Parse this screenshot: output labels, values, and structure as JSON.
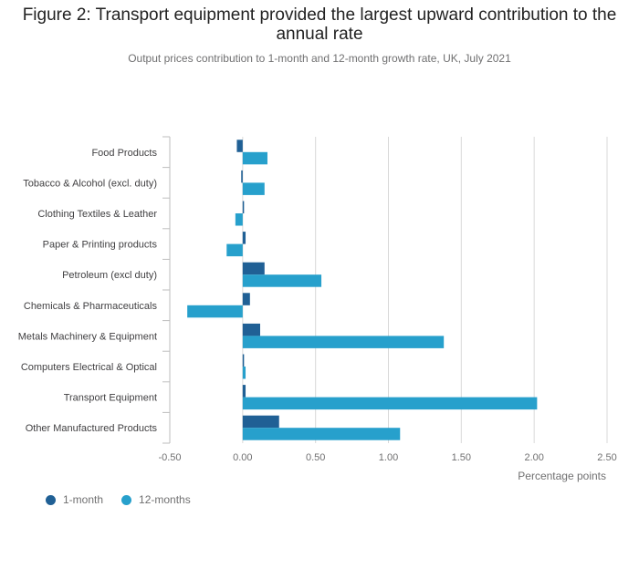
{
  "title": "Figure 2: Transport equipment provided the largest upward contribution to the annual rate",
  "subtitle": "Output prices contribution to 1-month and 12-month growth rate, UK, July 2021",
  "colors": {
    "series1": "#206095",
    "series2": "#27A0CC",
    "grid": "#d9d9d9",
    "axis": "#bebebe"
  },
  "chart_data": {
    "type": "bar",
    "orientation": "horizontal",
    "categories": [
      "Food Products",
      "Tobacco & Alcohol (excl. duty)",
      "Clothing Textiles & Leather",
      "Paper & Printing products",
      "Petroleum (excl duty)",
      "Chemicals & Pharmaceuticals",
      "Metals Machinery & Equipment",
      "Computers Electrical & Optical",
      "Transport Equipment",
      "Other Manufactured Products"
    ],
    "series": [
      {
        "name": "1-month",
        "values": [
          -0.04,
          -0.01,
          0.0,
          0.02,
          0.15,
          0.05,
          0.12,
          0.0,
          0.02,
          0.25
        ]
      },
      {
        "name": "12-months",
        "values": [
          0.17,
          0.15,
          -0.05,
          -0.11,
          0.54,
          -0.38,
          1.38,
          0.02,
          2.02,
          1.08
        ]
      }
    ],
    "xlabel": "Percentage points",
    "ylabel": "",
    "xlim": [
      -0.5,
      2.5
    ],
    "xticks": [
      "-0.50",
      "0.00",
      "0.50",
      "1.00",
      "1.50",
      "2.00",
      "2.50"
    ],
    "xtick_values": [
      -0.5,
      0,
      0.5,
      1.0,
      1.5,
      2.0,
      2.5
    ],
    "grid": true,
    "legend": "bottom-left"
  }
}
